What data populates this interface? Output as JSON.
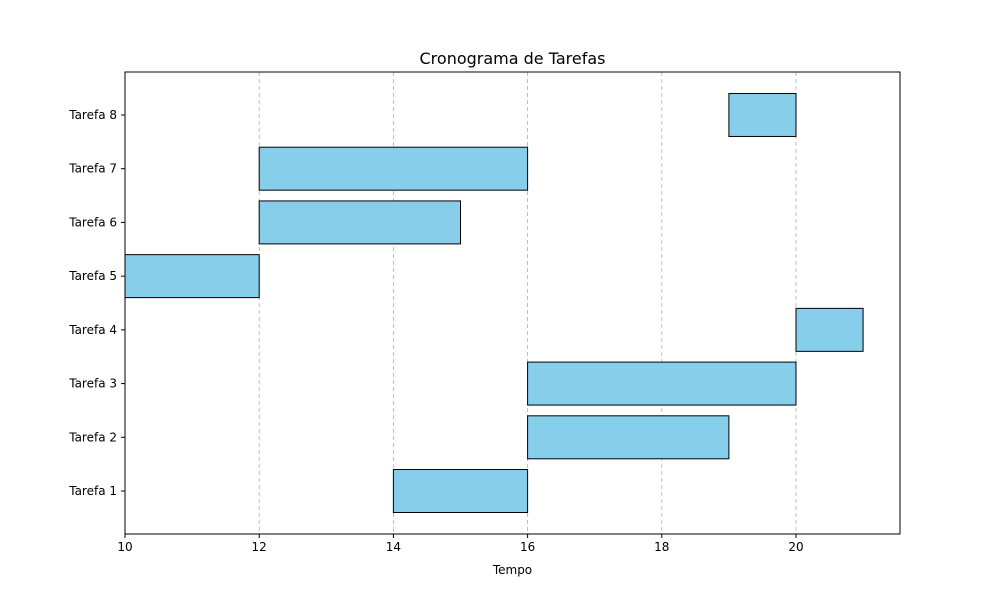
{
  "chart_data": {
    "type": "bar",
    "orientation": "horizontal-gantt",
    "title": "Cronograma de Tarefas",
    "xlabel": "Tempo",
    "ylabel": "",
    "xlim": [
      10,
      21.55
    ],
    "xticks": [
      10,
      12,
      14,
      16,
      18,
      20
    ],
    "grid": "x-dashed",
    "categories": [
      "Tarefa 1",
      "Tarefa 2",
      "Tarefa 3",
      "Tarefa 4",
      "Tarefa 5",
      "Tarefa 6",
      "Tarefa 7",
      "Tarefa 8"
    ],
    "tasks": [
      {
        "name": "Tarefa 1",
        "start": 14,
        "end": 16
      },
      {
        "name": "Tarefa 2",
        "start": 16,
        "end": 19
      },
      {
        "name": "Tarefa 3",
        "start": 16,
        "end": 20
      },
      {
        "name": "Tarefa 4",
        "start": 20,
        "end": 21
      },
      {
        "name": "Tarefa 5",
        "start": 10,
        "end": 12
      },
      {
        "name": "Tarefa 6",
        "start": 12,
        "end": 15
      },
      {
        "name": "Tarefa 7",
        "start": 12,
        "end": 16
      },
      {
        "name": "Tarefa 8",
        "start": 19,
        "end": 20
      }
    ],
    "colors": {
      "bar": "#87ceeb",
      "edge": "#000000",
      "grid": "#b0b0b0"
    }
  }
}
